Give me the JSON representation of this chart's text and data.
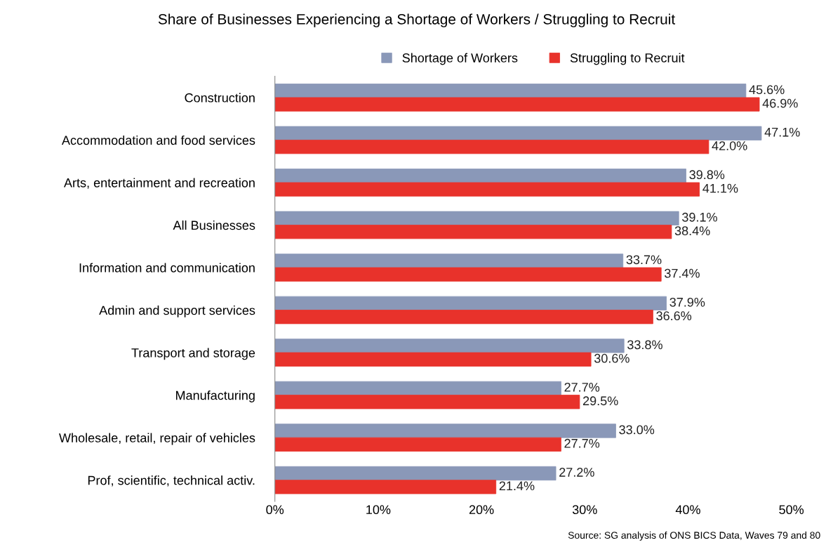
{
  "chart_data": {
    "type": "bar",
    "orientation": "horizontal",
    "title": "Share of Businesses Experiencing a Shortage of Workers / Struggling to Recruit",
    "categories": [
      "Construction",
      "Accommodation and food services",
      "Arts, entertainment and recreation",
      "All Businesses",
      "Information and communication",
      "Admin and support services",
      "Transport and storage",
      "Manufacturing",
      "Wholesale, retail, repair of vehicles",
      "Prof, scientific, technical activ."
    ],
    "series": [
      {
        "name": "Shortage of Workers",
        "color": "#8a98b8",
        "values": [
          45.6,
          47.1,
          39.8,
          39.1,
          33.7,
          37.9,
          33.8,
          27.7,
          33.0,
          27.2
        ],
        "value_labels": [
          "45.6%",
          "47.1%",
          "39.8%",
          "39.1%",
          "33.7%",
          "37.9%",
          "33.8%",
          "27.7%",
          "33.0%",
          "27.2%"
        ]
      },
      {
        "name": "Struggling to Recruit",
        "color": "#e8322b",
        "values": [
          46.9,
          42.0,
          41.1,
          38.4,
          37.4,
          36.6,
          30.6,
          29.5,
          27.7,
          21.4
        ],
        "value_labels": [
          "46.9%",
          "42.0%",
          "41.1%",
          "38.4%",
          "37.4%",
          "36.6%",
          "30.6%",
          "29.5%",
          "27.7%",
          "21.4%"
        ]
      }
    ],
    "xlim": [
      0,
      50
    ],
    "xticks": [
      {
        "value": 0,
        "label": "0%"
      },
      {
        "value": 10,
        "label": "10%"
      },
      {
        "value": 20,
        "label": "20%"
      },
      {
        "value": 30,
        "label": "30%"
      },
      {
        "value": 40,
        "label": "40%"
      },
      {
        "value": 50,
        "label": "50%"
      }
    ],
    "legend": "top",
    "grid": false,
    "annotations": [
      "Source: SG analysis of ONS BICS Data, Waves 79 and 80"
    ]
  }
}
